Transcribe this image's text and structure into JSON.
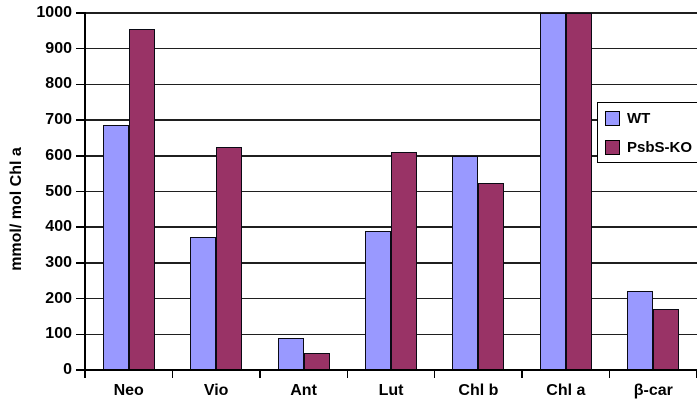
{
  "chart_data": {
    "type": "bar",
    "title": "",
    "xlabel": "",
    "ylabel": "mmol/ mol Chl a",
    "categories": [
      "Neo",
      "Vio",
      "Ant",
      "Lut",
      "Chl b",
      "Chl a",
      "β-car"
    ],
    "series": [
      {
        "name": "WT",
        "color": "#9999FF",
        "values": [
          685,
          372,
          90,
          390,
          600,
          1000,
          220
        ]
      },
      {
        "name": "PsbS-KO",
        "color": "#993366",
        "values": [
          955,
          625,
          48,
          610,
          525,
          1000,
          170
        ]
      }
    ],
    "ylim": [
      0,
      1000
    ],
    "yticks": [
      0,
      100,
      200,
      300,
      400,
      500,
      600,
      700,
      800,
      900,
      1000
    ],
    "grid": true,
    "legend_position": "right",
    "colors": {
      "bar_border": "#0a0a14",
      "gridline": "#1f1f1f",
      "axis": "#000000",
      "legend_border": "#000000",
      "background": "#ffffff"
    }
  }
}
